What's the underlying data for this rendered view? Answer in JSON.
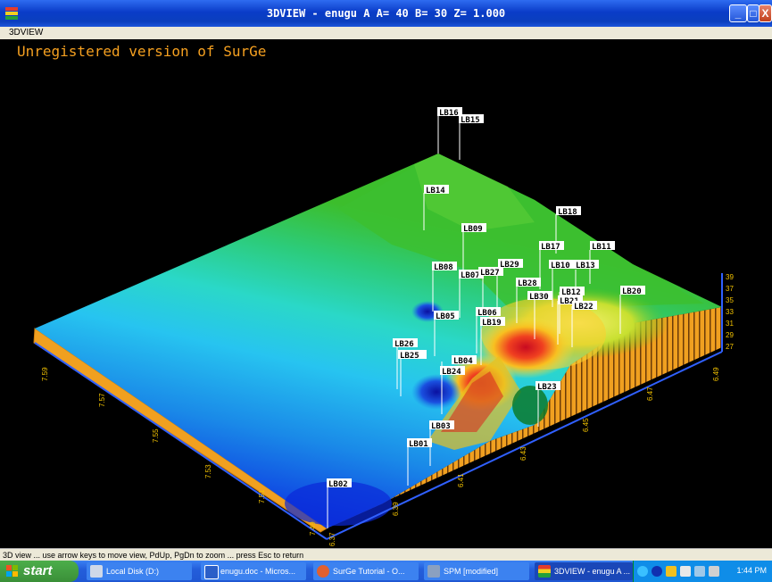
{
  "window": {
    "title": "3DVIEW - enugu A   A= 40   B= 30   Z=   1.000",
    "menu": "3DVIEW",
    "buttons": {
      "minimize": "_",
      "maximize": "□",
      "close": "X"
    }
  },
  "view": {
    "watermark": "Unregistered version of SurGe",
    "status_text": "3D view ... use arrow keys to move view, PdUp, PgDn to zoom ... press Esc to return",
    "points": [
      "LB16",
      "LB15",
      "LB14",
      "LB18",
      "LB09",
      "LB17",
      "LB11",
      "LB29",
      "LB08",
      "LB10",
      "LB13",
      "LB07",
      "LB27",
      "LB28",
      "LB20",
      "LB12",
      "LB30",
      "LB21",
      "LB22",
      "LB06",
      "LB05",
      "LB19",
      "LB26",
      "LB25",
      "LB04",
      "LB24",
      "LB23",
      "LB03",
      "LB01",
      "LB02"
    ],
    "left_axis_ticks": [
      "7.59",
      "7.57",
      "7.55",
      "7.53",
      "7.51",
      "7.49"
    ],
    "bottom_axis_ticks": [
      "6.37",
      "6.39",
      "6.41",
      "6.43",
      "6.45",
      "6.47",
      "6.49"
    ],
    "height_scale_ticks": [
      "39",
      "37",
      "35",
      "33",
      "31",
      "29",
      "27"
    ]
  },
  "taskbar": {
    "start_label": "start",
    "tasks": [
      "Local Disk (D:)",
      "enugu.doc - Micros...",
      "SurGe Tutorial - O...",
      "SPM [modified]",
      "3DVIEW - enugu A ..."
    ],
    "clock": "1:44 PM"
  },
  "colors": {
    "watermark": "#f5a020",
    "tick": "#f2c200",
    "accent": "#0a3cc8"
  }
}
